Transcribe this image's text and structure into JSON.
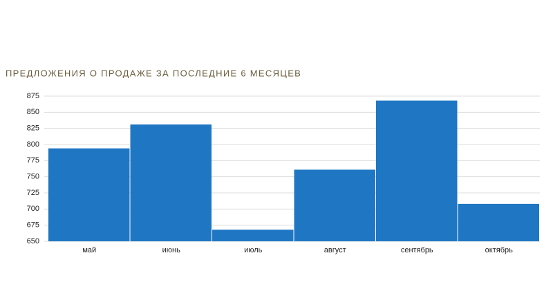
{
  "chart_data": {
    "type": "bar",
    "title": "ПРЕДЛОЖЕНИЯ О ПРОДАЖЕ ЗА ПОСЛЕДНИЕ 6 МЕСЯЦЕВ",
    "categories": [
      "май",
      "июнь",
      "июль",
      "август",
      "сентябрь",
      "октябрь"
    ],
    "values": [
      794,
      831,
      668,
      761,
      868,
      708
    ],
    "color": "#1f77c4",
    "ylim": [
      650,
      875
    ],
    "yticks": [
      650,
      675,
      700,
      725,
      750,
      775,
      800,
      825,
      850,
      875
    ],
    "grid": true
  }
}
